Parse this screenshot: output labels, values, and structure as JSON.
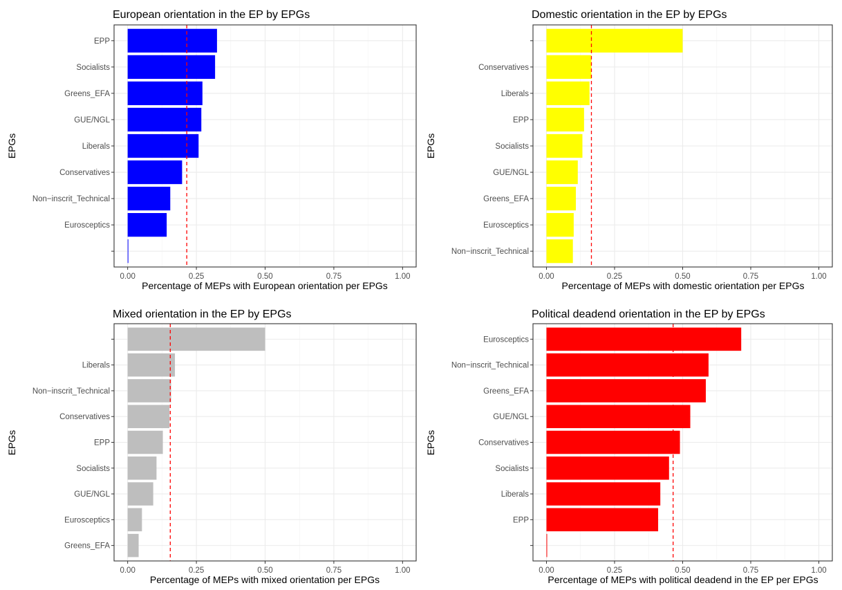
{
  "chart_data": [
    {
      "type": "bar",
      "orientation": "horizontal",
      "title": "European orientation in the EP by EPGs",
      "xlabel": "Percentage of MEPs with European orientation per EPGs",
      "ylabel": "EPGs",
      "categories": [
        "EPP",
        "Socialists",
        "Greens_EFA",
        "GUE/NGL",
        "Liberals",
        "Conservatives",
        "Non−inscrit_Technical",
        "Eurosceptics",
        ""
      ],
      "values": [
        0.325,
        0.318,
        0.272,
        0.268,
        0.258,
        0.198,
        0.155,
        0.142,
        0.002
      ],
      "color": "#0000ff",
      "reference_line": 0.215,
      "reference_line_color": "#ff0000",
      "xlim": [
        0,
        1
      ],
      "xticks": [
        "0.00",
        "0.25",
        "0.50",
        "0.75",
        "1.00"
      ],
      "grid": true
    },
    {
      "type": "bar",
      "orientation": "horizontal",
      "title": "Domestic orientation in the EP by EPGs",
      "xlabel": "Percentage of MEPs with domestic orientation per EPGs",
      "ylabel": "EPGs",
      "categories": [
        "",
        "Conservatives",
        "Liberals",
        "EPP",
        "Socialists",
        "GUE/NGL",
        "Greens_EFA",
        "Eurosceptics",
        "Non−inscrit_Technical"
      ],
      "values": [
        0.5,
        0.165,
        0.158,
        0.138,
        0.132,
        0.115,
        0.108,
        0.1,
        0.097
      ],
      "color": "#ffff00",
      "reference_line": 0.165,
      "reference_line_color": "#ff0000",
      "xlim": [
        0,
        1
      ],
      "xticks": [
        "0.00",
        "0.25",
        "0.50",
        "0.75",
        "1.00"
      ],
      "grid": true
    },
    {
      "type": "bar",
      "orientation": "horizontal",
      "title": "Mixed orientation in the EP by EPGs",
      "xlabel": "Percentage of MEPs with mixed orientation per EPGs",
      "ylabel": "EPGs",
      "categories": [
        "",
        "Liberals",
        "Non−inscrit_Technical",
        "Conservatives",
        "EPP",
        "Socialists",
        "GUE/NGL",
        "Eurosceptics",
        "Greens_EFA"
      ],
      "values": [
        0.5,
        0.172,
        0.158,
        0.152,
        0.128,
        0.105,
        0.093,
        0.052,
        0.04
      ],
      "color": "#bebebe",
      "reference_line": 0.155,
      "reference_line_color": "#ff0000",
      "xlim": [
        0,
        1
      ],
      "xticks": [
        "0.00",
        "0.25",
        "0.50",
        "0.75",
        "1.00"
      ],
      "grid": true
    },
    {
      "type": "bar",
      "orientation": "horizontal",
      "title": "Political deadend orientation in the EP by EPGs",
      "xlabel": "Percentage of MEPs with political deadend in the EP per EPGs",
      "ylabel": "EPGs",
      "categories": [
        "Eurosceptics",
        "Non−inscrit_Technical",
        "Greens_EFA",
        "GUE/NGL",
        "Conservatives",
        "Socialists",
        "Liberals",
        "EPP",
        ""
      ],
      "values": [
        0.715,
        0.595,
        0.585,
        0.528,
        0.49,
        0.45,
        0.418,
        0.41,
        0.002
      ],
      "color": "#ff0000",
      "reference_line": 0.465,
      "reference_line_color": "#ff0000",
      "xlim": [
        0,
        1
      ],
      "xticks": [
        "0.00",
        "0.25",
        "0.50",
        "0.75",
        "1.00"
      ],
      "grid": true
    }
  ]
}
